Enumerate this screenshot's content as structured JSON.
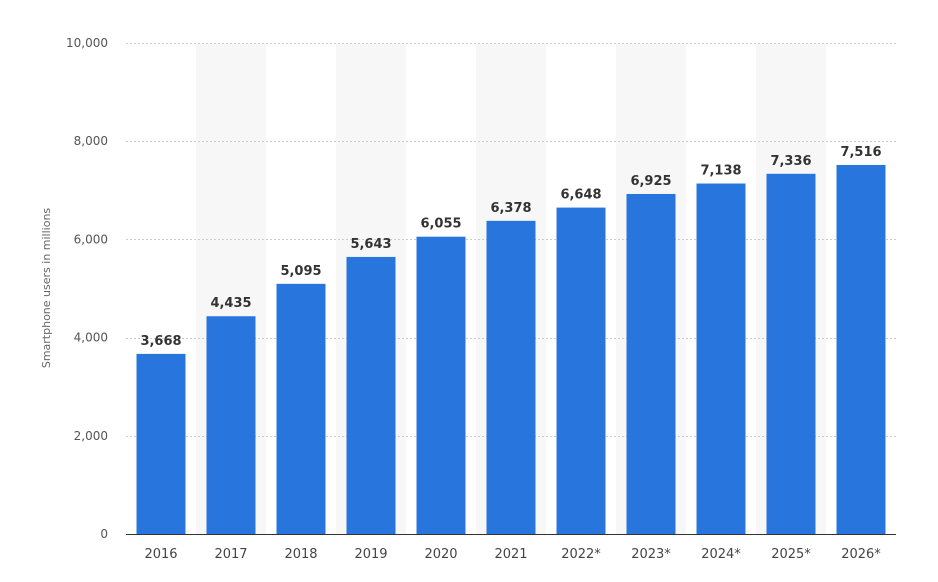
{
  "colors": {
    "bar": "#2876dd",
    "band": "#f7f7f7",
    "grid": "#cccccc",
    "axis": "#333333"
  },
  "chart_data": {
    "type": "bar",
    "categories": [
      "2016",
      "2017",
      "2018",
      "2019",
      "2020",
      "2021",
      "2022*",
      "2023*",
      "2024*",
      "2025*",
      "2026*"
    ],
    "values": [
      3668,
      4435,
      5095,
      5643,
      6055,
      6378,
      6648,
      6925,
      7138,
      7336,
      7516
    ],
    "value_labels": [
      "3,668",
      "4,435",
      "5,095",
      "5,643",
      "6,055",
      "6,378",
      "6,648",
      "6,925",
      "7,138",
      "7,336",
      "7,516"
    ],
    "title": "",
    "xlabel": "",
    "ylabel": "Smartphone users in millions",
    "ylim": [
      0,
      10000
    ],
    "yticks": [
      0,
      2000,
      4000,
      6000,
      8000,
      10000
    ],
    "ytick_labels": [
      "0",
      "2,000",
      "4,000",
      "6,000",
      "8,000",
      "10,000"
    ],
    "grid": true,
    "legend": "none"
  }
}
